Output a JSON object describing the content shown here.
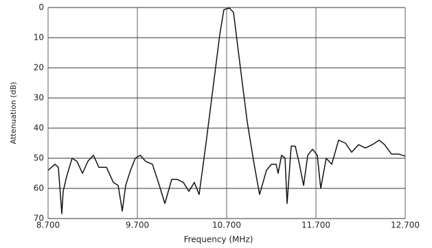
{
  "chart_data": {
    "type": "line",
    "xlabel": "Frequency (MHz)",
    "ylabel": "Attenuation (dB)",
    "x": [
      8.7,
      8.777,
      8.815,
      8.854,
      8.869,
      8.908,
      8.969,
      9.023,
      9.085,
      9.146,
      9.208,
      9.269,
      9.354,
      9.431,
      9.485,
      9.531,
      9.569,
      9.623,
      9.677,
      9.731,
      9.792,
      9.869,
      9.946,
      10.008,
      10.085,
      10.146,
      10.215,
      10.277,
      10.338,
      10.392,
      10.469,
      10.546,
      10.623,
      10.669,
      10.731,
      10.777,
      10.854,
      10.931,
      11.008,
      11.069,
      11.146,
      11.2,
      11.254,
      11.277,
      11.315,
      11.354,
      11.377,
      11.423,
      11.469,
      11.515,
      11.562,
      11.608,
      11.662,
      11.715,
      11.754,
      11.815,
      11.877,
      11.954,
      12.031,
      12.1,
      12.177,
      12.254,
      12.331,
      12.408,
      12.469,
      12.546,
      12.623,
      12.7
    ],
    "series": [
      {
        "name": "Attenuation",
        "color": "#111111",
        "values": [
          54,
          52,
          53,
          68.4,
          61,
          56,
          50,
          51,
          55,
          51,
          49,
          53,
          53,
          58,
          59,
          67.5,
          59,
          54,
          50,
          49,
          51,
          52,
          59,
          65,
          57,
          57,
          58,
          61,
          58,
          62,
          45,
          27,
          9,
          0.7,
          0.2,
          1.6,
          20,
          38,
          52,
          62,
          54,
          52,
          52,
          55,
          49,
          50,
          65,
          46,
          46,
          52,
          59,
          49,
          47,
          49,
          60,
          50,
          52,
          44,
          45,
          48,
          45.5,
          46.6,
          45.5,
          44,
          45.5,
          48.6,
          48.6,
          49.3
        ]
      }
    ],
    "xlim": [
      8.7,
      12.7
    ],
    "xticks": [
      {
        "value": 8.7,
        "label": "8.700"
      },
      {
        "value": 9.7,
        "label": "9.700"
      },
      {
        "value": 10.7,
        "label": "10.700"
      },
      {
        "value": 11.7,
        "label": "11.700"
      },
      {
        "value": 12.7,
        "label": "12.700"
      }
    ],
    "ylim": [
      0,
      70
    ],
    "yticks": [
      0,
      10,
      20,
      30,
      40,
      50,
      60,
      70
    ],
    "y_inverted": true,
    "grid": true,
    "xgrid_color": "#b0b0b0",
    "ygrid_color": "#333333"
  }
}
